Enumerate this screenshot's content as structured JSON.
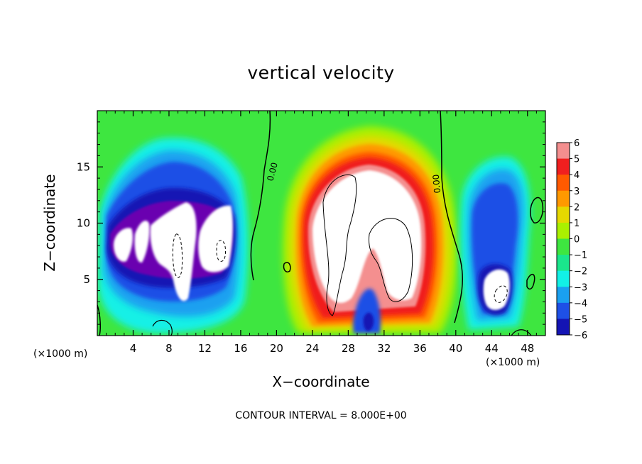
{
  "chart_data": {
    "type": "heatmap",
    "title": "vertical velocity",
    "xlabel": "X−coordinate",
    "ylabel": "Z−coordinate",
    "x_unit_left": "(×1000 m)",
    "x_unit_right": "(×1000 m)",
    "contour_interval_text": "CONTOUR INTERVAL = 8.000E+00",
    "xlim": [
      0,
      50
    ],
    "ylim": [
      0,
      20
    ],
    "x_ticks": [
      4,
      8,
      12,
      16,
      20,
      24,
      28,
      32,
      36,
      40,
      44,
      48
    ],
    "y_ticks": [
      5,
      10,
      15
    ],
    "colorbar": {
      "levels": [
        6,
        5,
        4,
        3,
        2,
        1,
        0,
        -1,
        -2,
        -3,
        -4,
        -5,
        -6
      ],
      "colors": [
        "#f48f8f",
        "#f01f1f",
        "#ff5a00",
        "#ff9900",
        "#e6d800",
        "#aaf000",
        "#3ee640",
        "#1ae68c",
        "#12f0e6",
        "#1aa0f0",
        "#1e50e6",
        "#1414b4",
        "#6a00b0"
      ]
    },
    "contour_labels": [
      "0.00",
      "0.00"
    ],
    "grid": false
  }
}
